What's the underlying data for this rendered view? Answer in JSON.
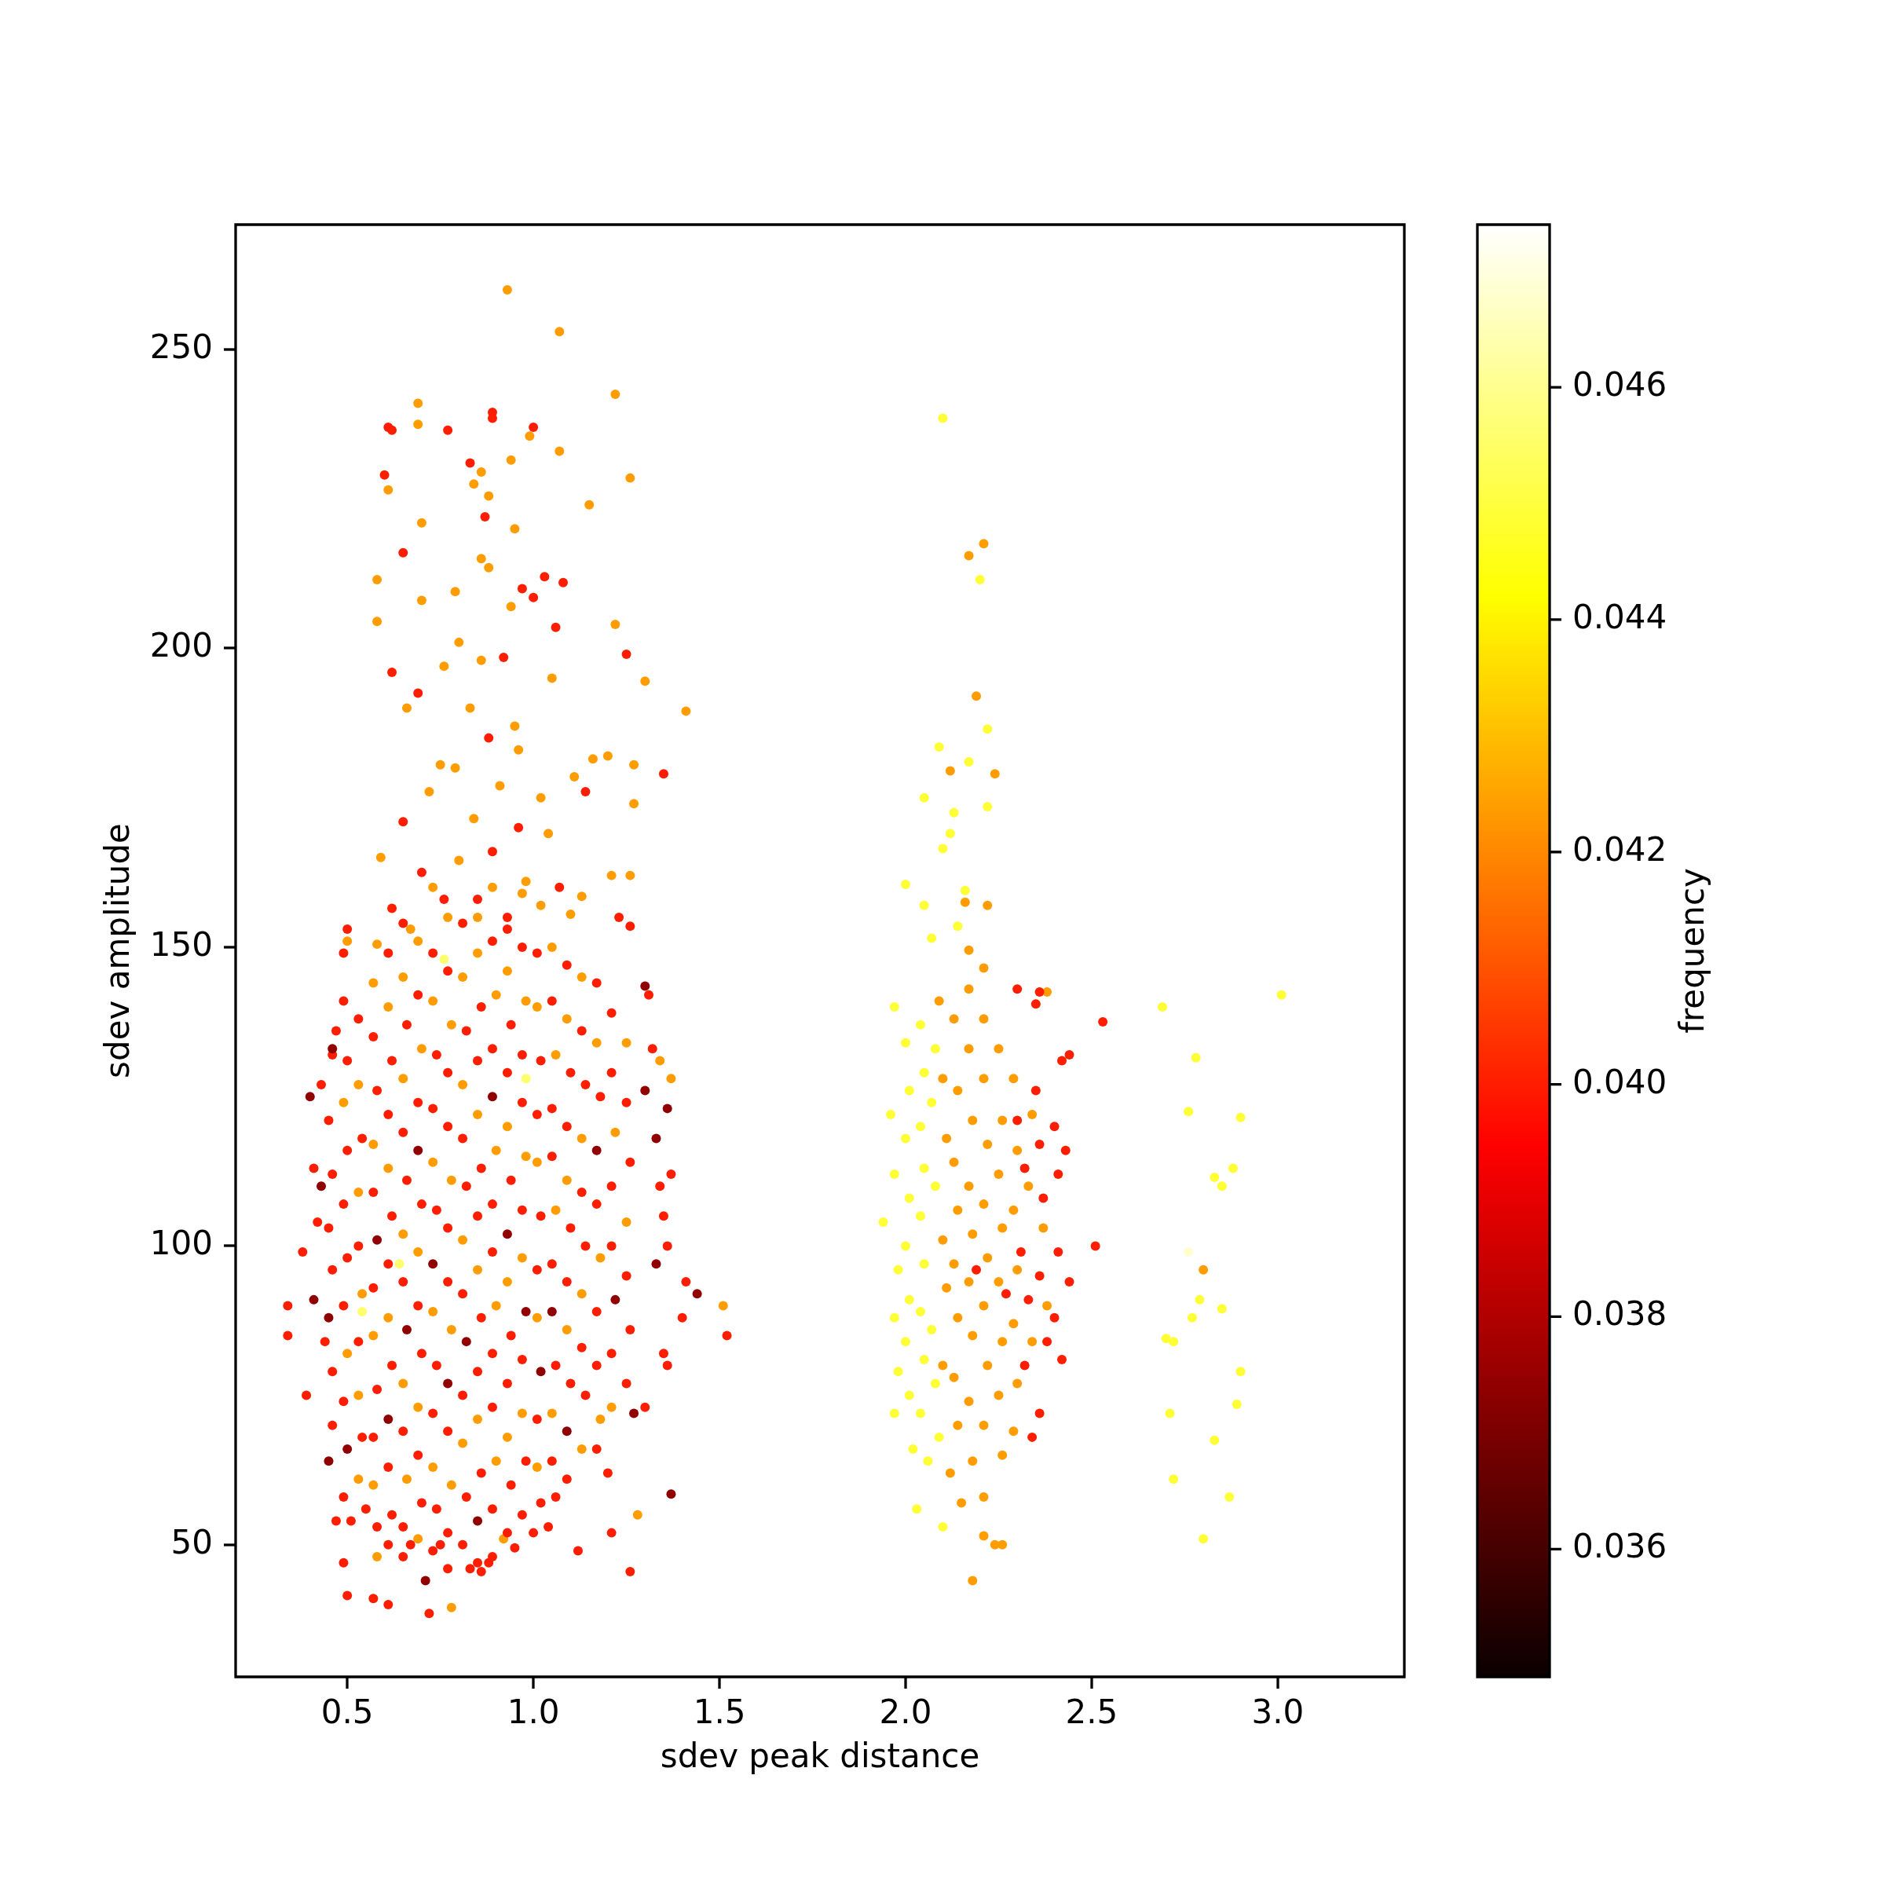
{
  "chart_data": {
    "type": "scatter",
    "xlabel": "sdev peak distance",
    "ylabel": "sdev amplitude",
    "clabel": "frequency",
    "xlim": [
      0.2,
      3.34
    ],
    "ylim": [
      27.9,
      270.9
    ],
    "xticks": [
      0.5,
      {
        "value": 1,
        "label": "1.0"
      },
      1.5,
      {
        "value": 2,
        "label": "2.0"
      },
      2.5,
      {
        "value": 3,
        "label": "3.0"
      }
    ],
    "yticks": [
      50,
      100,
      150,
      200,
      250
    ],
    "clim": [
      0.0349,
      0.0474
    ],
    "cticks": [
      0.036,
      0.038,
      {
        "value": 0.04,
        "label": "0.040"
      },
      0.042,
      0.044,
      0.046
    ],
    "grid": false,
    "legend": false,
    "marker": "circle",
    "series": [
      {
        "x": [
          0.71,
          1.37,
          0.41,
          0.4,
          0.43,
          0.46,
          1.44,
          1.36,
          1.3,
          1.33,
          1.33,
          1.27,
          1.3,
          0.45,
          0.45,
          0.5,
          0.58,
          0.61,
          0.66,
          0.69,
          0.73,
          0.77,
          0.82,
          0.85,
          0.89,
          0.93,
          0.98,
          1.02,
          1.05,
          1.09,
          1.17,
          1.22
        ],
        "values": [
          44,
          58.5,
          91,
          125,
          110,
          133,
          92,
          123,
          143.5,
          118,
          97,
          72,
          126,
          88,
          64,
          66,
          101,
          71,
          86,
          116,
          97,
          77,
          84,
          54,
          125,
          102,
          89,
          79,
          89,
          69,
          116,
          91
        ],
        "cvalues": [
          0.0374,
          0.0374,
          0.0374,
          0.0374,
          0.0374,
          0.0374,
          0.0374,
          0.0374,
          0.0374,
          0.0374,
          0.0374,
          0.0374,
          0.0374,
          0.0374,
          0.0374,
          0.0374,
          0.0374,
          0.0374,
          0.0374,
          0.0374,
          0.0374,
          0.0374,
          0.0374,
          0.0374,
          0.0374,
          0.0374,
          0.0374,
          0.0374,
          0.0374,
          0.0374,
          0.0374,
          0.0374
        ]
      },
      {
        "x": [
          0.61,
          0.62,
          0.77,
          0.89,
          0.89,
          1.0,
          0.83,
          0.6,
          0.87,
          0.65,
          1.03,
          1.08,
          1.0,
          0.97,
          1.06,
          1.25,
          0.62,
          0.69,
          0.92,
          1.35,
          0.88,
          0.65,
          1.14,
          0.7,
          0.89,
          1.07,
          0.76,
          0.62,
          1.23,
          1.26,
          0.5,
          0.93,
          0.96,
          0.72,
          0.5,
          0.57,
          0.61,
          0.49,
          0.86,
          0.88,
          0.83,
          1.26,
          1.12,
          0.75,
          0.67,
          1.0,
          1.04,
          1.21,
          0.95,
          0.47,
          0.51,
          0.55,
          0.34,
          0.34,
          0.39,
          0.38,
          0.41,
          0.42,
          0.43,
          0.44,
          0.47,
          1.52,
          1.41,
          1.4,
          1.36,
          1.31,
          1.32,
          1.35,
          1.36,
          1.34,
          1.37,
          1.35,
          1.3,
          1.2
        ],
        "values": [
          237,
          236.5,
          236.5,
          239.5,
          238.5,
          237,
          231,
          229,
          222,
          216,
          212,
          211,
          208.5,
          210,
          203.5,
          199,
          196,
          192.5,
          198.5,
          179,
          185,
          171,
          176,
          162.5,
          166,
          160,
          158,
          156.5,
          155,
          153.5,
          153,
          153,
          170,
          38.5,
          41.5,
          41,
          40,
          47,
          45.5,
          47,
          46,
          45.5,
          49,
          50,
          50,
          52,
          53,
          52,
          49.5,
          54,
          54,
          56,
          90,
          85,
          75,
          99,
          113,
          104,
          127,
          84,
          136,
          85,
          94,
          88,
          80,
          142,
          133,
          105,
          100,
          110,
          112,
          82,
          73,
          62
        ],
        "cvalues": [
          0.04,
          0.04,
          0.04,
          0.04,
          0.04,
          0.04,
          0.04,
          0.04,
          0.04,
          0.04,
          0.04,
          0.04,
          0.04,
          0.04,
          0.04,
          0.04,
          0.04,
          0.04,
          0.04,
          0.04,
          0.04,
          0.04,
          0.04,
          0.04,
          0.04,
          0.04,
          0.04,
          0.04,
          0.04,
          0.04,
          0.04,
          0.04,
          0.04,
          0.04,
          0.04,
          0.04,
          0.04,
          0.04,
          0.04,
          0.04,
          0.04,
          0.04,
          0.04,
          0.04,
          0.04,
          0.04,
          0.04,
          0.04,
          0.04,
          0.04,
          0.04,
          0.04,
          0.04,
          0.04,
          0.04,
          0.04,
          0.04,
          0.04,
          0.04,
          0.04,
          0.04,
          0.04,
          0.04,
          0.04,
          0.04,
          0.04,
          0.04,
          0.04,
          0.04,
          0.04,
          0.04,
          0.04,
          0.04,
          0.04
        ]
      },
      {
        "x": [
          0.46,
          0.45,
          0.46,
          0.45,
          0.46,
          0.46,
          0.46,
          0.49,
          0.49,
          0.5,
          0.5,
          0.49,
          0.5,
          0.49,
          0.49,
          0.49,
          0.53,
          0.54,
          0.53,
          0.53,
          0.54,
          0.57,
          0.58,
          0.57,
          0.57,
          0.58,
          0.57,
          0.58,
          0.61,
          0.62,
          0.61,
          0.62,
          0.61,
          0.62,
          0.61,
          0.62,
          0.61,
          0.65,
          0.66,
          0.65,
          0.66,
          0.65,
          0.65,
          0.65,
          0.65,
          0.69,
          0.69,
          0.7,
          0.69,
          0.7,
          0.69,
          0.7,
          0.73,
          0.74,
          0.73,
          0.74,
          0.74,
          0.73,
          0.74,
          0.73,
          0.77,
          0.77,
          0.77,
          0.77,
          0.77,
          0.77,
          0.77,
          0.77,
          0.81,
          0.82,
          0.81,
          0.82,
          0.81,
          0.81,
          0.82,
          0.81
        ],
        "values": [
          132,
          121,
          112,
          103,
          96,
          79,
          70,
          149,
          141,
          131,
          116,
          107,
          98,
          90,
          74,
          58,
          138,
          118,
          100,
          84,
          68,
          135,
          126,
          109,
          93,
          76,
          68,
          53,
          149,
          131,
          122,
          105,
          97,
          80,
          63,
          55,
          50,
          154,
          137,
          119,
          111,
          94,
          69,
          53,
          48,
          142,
          124,
          107,
          90,
          82,
          65,
          57,
          149,
          132,
          123,
          106,
          80,
          72,
          56,
          49,
          146,
          129,
          120,
          103,
          94,
          69,
          52,
          46,
          154,
          136,
          118,
          110,
          92,
          75,
          58,
          50
        ],
        "cvalues": [
          0.04,
          0.04,
          0.04,
          0.04,
          0.04,
          0.04,
          0.04,
          0.04,
          0.04,
          0.04,
          0.04,
          0.04,
          0.04,
          0.04,
          0.04,
          0.04,
          0.04,
          0.04,
          0.04,
          0.04,
          0.04,
          0.04,
          0.04,
          0.04,
          0.04,
          0.04,
          0.04,
          0.04,
          0.04,
          0.04,
          0.04,
          0.04,
          0.04,
          0.04,
          0.04,
          0.04,
          0.04,
          0.04,
          0.04,
          0.04,
          0.04,
          0.04,
          0.04,
          0.04,
          0.04,
          0.04,
          0.04,
          0.04,
          0.04,
          0.04,
          0.04,
          0.04,
          0.04,
          0.04,
          0.04,
          0.04,
          0.04,
          0.04,
          0.04,
          0.04,
          0.04,
          0.04,
          0.04,
          0.04,
          0.04,
          0.04,
          0.04,
          0.04,
          0.04,
          0.04,
          0.04,
          0.04,
          0.04,
          0.04,
          0.04,
          0.04
        ]
      },
      {
        "x": [
          0.85,
          0.86,
          0.85,
          0.86,
          0.85,
          0.86,
          0.85,
          0.86,
          0.85,
          0.89,
          0.89,
          0.89,
          0.89,
          0.89,
          0.89,
          0.89,
          0.89,
          0.93,
          0.94,
          0.93,
          0.94,
          0.94,
          0.93,
          0.94,
          0.93,
          0.97,
          0.97,
          0.97,
          0.97,
          0.97,
          0.98,
          0.97,
          1.01,
          1.02,
          1.01,
          1.02,
          1.01,
          1.01,
          1.02,
          1.05,
          1.05,
          1.05,
          1.05,
          1.06,
          1.05,
          1.06,
          1.09,
          1.1,
          1.09,
          1.1,
          1.09,
          1.1,
          1.09,
          1.13,
          1.14,
          1.13,
          1.14,
          1.13,
          1.14,
          1.17,
          1.18,
          1.17,
          1.17,
          1.17,
          1.17,
          1.21,
          1.21,
          1.21,
          1.21,
          1.21,
          1.25,
          1.26,
          1.25,
          1.26,
          1.25
        ],
        "values": [
          158,
          140,
          131,
          113,
          105,
          88,
          79,
          62,
          47,
          151,
          133,
          107,
          99,
          82,
          73,
          56,
          48,
          155,
          137,
          129,
          111,
          85,
          77,
          60,
          52,
          150,
          132,
          124,
          106,
          81,
          64,
          55,
          149,
          131,
          122,
          105,
          96,
          71,
          57,
          141,
          123,
          115,
          97,
          80,
          64,
          58,
          147,
          129,
          120,
          103,
          94,
          77,
          61,
          136,
          127,
          109,
          100,
          83,
          75,
          144,
          125,
          107,
          89,
          80,
          66,
          139,
          129,
          110,
          100,
          82,
          124,
          114,
          95,
          86,
          77
        ],
        "cvalues": [
          0.04,
          0.04,
          0.04,
          0.04,
          0.04,
          0.04,
          0.04,
          0.04,
          0.04,
          0.04,
          0.04,
          0.04,
          0.04,
          0.04,
          0.04,
          0.04,
          0.04,
          0.04,
          0.04,
          0.04,
          0.04,
          0.04,
          0.04,
          0.04,
          0.04,
          0.04,
          0.04,
          0.04,
          0.04,
          0.04,
          0.04,
          0.04,
          0.04,
          0.04,
          0.04,
          0.04,
          0.04,
          0.04,
          0.04,
          0.04,
          0.04,
          0.04,
          0.04,
          0.04,
          0.04,
          0.04,
          0.04,
          0.04,
          0.04,
          0.04,
          0.04,
          0.04,
          0.04,
          0.04,
          0.04,
          0.04,
          0.04,
          0.04,
          0.04,
          0.04,
          0.04,
          0.04,
          0.04,
          0.04,
          0.04,
          0.04,
          0.04,
          0.04,
          0.04,
          0.04,
          0.04,
          0.04,
          0.04,
          0.04,
          0.04
        ]
      },
      {
        "x": [
          2.3,
          2.36,
          2.35,
          2.53,
          2.44,
          2.42,
          2.51,
          2.3,
          2.32,
          2.31,
          2.33,
          2.32,
          2.35,
          2.36,
          2.37,
          2.36,
          2.38,
          2.36,
          2.4,
          2.41,
          2.41,
          2.4,
          2.42,
          2.43,
          2.44,
          2.34,
          2.27,
          2.19
        ],
        "values": [
          143,
          142.5,
          140.5,
          137.5,
          132,
          131,
          100,
          121,
          113,
          99,
          91,
          80,
          126,
          117,
          108,
          95,
          84,
          72,
          120,
          112,
          99,
          88,
          81,
          116,
          94,
          68,
          92,
          96
        ],
        "cvalues": [
          0.04,
          0.04,
          0.04,
          0.04,
          0.04,
          0.04,
          0.04,
          0.04,
          0.04,
          0.04,
          0.04,
          0.04,
          0.04,
          0.04,
          0.04,
          0.04,
          0.04,
          0.04,
          0.04,
          0.04,
          0.04,
          0.04,
          0.04,
          0.04,
          0.04,
          0.04,
          0.04,
          0.04
        ]
      },
      {
        "x": [
          0.93,
          1.07,
          1.22,
          0.69,
          0.69,
          0.99,
          1.07,
          0.94,
          1.26,
          0.86,
          0.84,
          0.61,
          0.88,
          1.15,
          0.95,
          0.7,
          0.88,
          0.86,
          0.58,
          0.7,
          0.79,
          0.94,
          1.22,
          1.3,
          1.41,
          0.83,
          0.58,
          0.95,
          0.8,
          0.86,
          1.05,
          0.76,
          1.16,
          1.2,
          1.27,
          1.27,
          1.11,
          0.75,
          0.79,
          0.66,
          0.96,
          1.02,
          0.72,
          0.84,
          0.91,
          1.04,
          1.21,
          1.26,
          0.59,
          0.8,
          0.98,
          1.13,
          0.67,
          0.5,
          0.58,
          0.85,
          1.02,
          1.1,
          0.73,
          0.78,
          0.92,
          1.28,
          0.58,
          1.51,
          1.37,
          1.34
        ],
        "values": [
          260,
          253,
          242.5,
          241,
          237.5,
          235.5,
          233,
          231.5,
          228.5,
          229.5,
          227.5,
          226.5,
          225.5,
          224,
          220,
          221,
          213.5,
          215,
          211.5,
          208,
          209.5,
          207,
          204,
          194.5,
          189.5,
          190,
          204.5,
          187,
          201,
          198,
          195,
          197,
          181.5,
          182,
          180.5,
          174,
          178.5,
          180.5,
          180,
          190,
          183,
          175,
          176,
          171.5,
          177,
          169,
          162,
          162,
          165,
          164.5,
          161,
          158.5,
          153,
          151,
          150.5,
          155,
          157,
          155.5,
          160,
          39.5,
          51,
          55,
          48,
          90,
          128,
          131
        ],
        "cvalues": [
          0.0424,
          0.0424,
          0.0424,
          0.0424,
          0.0424,
          0.0424,
          0.0424,
          0.0424,
          0.0424,
          0.0424,
          0.0424,
          0.0424,
          0.0424,
          0.0424,
          0.0424,
          0.0424,
          0.0424,
          0.0424,
          0.0424,
          0.0424,
          0.0424,
          0.0424,
          0.0424,
          0.0424,
          0.0424,
          0.0424,
          0.0424,
          0.0424,
          0.0424,
          0.0424,
          0.0424,
          0.0424,
          0.0424,
          0.0424,
          0.0424,
          0.0424,
          0.0424,
          0.0424,
          0.0424,
          0.0424,
          0.0424,
          0.0424,
          0.0424,
          0.0424,
          0.0424,
          0.0424,
          0.0424,
          0.0424,
          0.0424,
          0.0424,
          0.0424,
          0.0424,
          0.0424,
          0.0424,
          0.0424,
          0.0424,
          0.0424,
          0.0424,
          0.0424,
          0.0424,
          0.0424,
          0.0424,
          0.0424,
          0.0424,
          0.0424,
          0.0424
        ]
      },
      {
        "x": [
          0.49,
          0.5,
          0.53,
          0.53,
          0.54,
          0.53,
          0.53,
          0.57,
          0.57,
          0.57,
          0.57,
          0.61,
          0.61,
          0.61,
          0.65,
          0.65,
          0.65,
          0.65,
          0.66,
          0.69,
          0.7,
          0.69,
          0.69,
          0.69,
          0.73,
          0.73,
          0.73,
          0.73,
          0.77,
          0.78,
          0.78,
          0.78,
          0.78,
          0.81,
          0.81,
          0.81,
          0.81,
          0.85,
          0.85,
          0.85,
          0.85,
          0.89,
          0.9,
          0.9,
          0.9,
          0.9,
          0.93,
          0.93,
          0.93,
          0.93,
          0.97,
          0.98,
          0.98,
          0.97,
          0.97,
          1.01,
          1.01,
          1.01,
          1.01,
          1.05,
          1.06,
          1.06,
          1.05,
          1.09,
          1.09,
          1.09,
          1.13,
          1.13,
          1.13,
          1.13,
          1.17,
          1.18,
          1.18,
          1.22,
          1.21,
          1.25,
          1.25
        ],
        "values": [
          124,
          82,
          127,
          109,
          92,
          75,
          61,
          144,
          117,
          85,
          60,
          140,
          113,
          88,
          145,
          128,
          102,
          77,
          61,
          151,
          133,
          99,
          73,
          51,
          141,
          114,
          89,
          63,
          155,
          137,
          111,
          86,
          60,
          145,
          127,
          101,
          67,
          149,
          122,
          96,
          71,
          160,
          142,
          116,
          90,
          64,
          146,
          120,
          94,
          68,
          159,
          141,
          115,
          98,
          72,
          140,
          114,
          88,
          63,
          150,
          132,
          106,
          72,
          138,
          111,
          86,
          145,
          118,
          92,
          66,
          134,
          98,
          71,
          119,
          73,
          134,
          104
        ],
        "cvalues": [
          0.0424,
          0.0424,
          0.0424,
          0.0424,
          0.0424,
          0.0424,
          0.0424,
          0.0424,
          0.0424,
          0.0424,
          0.0424,
          0.0424,
          0.0424,
          0.0424,
          0.0424,
          0.0424,
          0.0424,
          0.0424,
          0.0424,
          0.0424,
          0.0424,
          0.0424,
          0.0424,
          0.0424,
          0.0424,
          0.0424,
          0.0424,
          0.0424,
          0.0424,
          0.0424,
          0.0424,
          0.0424,
          0.0424,
          0.0424,
          0.0424,
          0.0424,
          0.0424,
          0.0424,
          0.0424,
          0.0424,
          0.0424,
          0.0424,
          0.0424,
          0.0424,
          0.0424,
          0.0424,
          0.0424,
          0.0424,
          0.0424,
          0.0424,
          0.0424,
          0.0424,
          0.0424,
          0.0424,
          0.0424,
          0.0424,
          0.0424,
          0.0424,
          0.0424,
          0.0424,
          0.0424,
          0.0424,
          0.0424,
          0.0424,
          0.0424,
          0.0424,
          0.0424,
          0.0424,
          0.0424,
          0.0424,
          0.0424,
          0.0424,
          0.0424,
          0.0424,
          0.0424,
          0.0424,
          0.0424
        ]
      },
      {
        "x": [
          2.17,
          2.21,
          2.19,
          2.12,
          2.24,
          2.16,
          2.22,
          2.17,
          2.21,
          2.38,
          2.09,
          2.1,
          2.11,
          2.1,
          2.11,
          2.1,
          2.12,
          2.13,
          2.14,
          2.13,
          2.14,
          2.13,
          2.14,
          2.13,
          2.14,
          2.15,
          2.17,
          2.17,
          2.18,
          2.17,
          2.18,
          2.17,
          2.18,
          2.17,
          2.18,
          2.18,
          2.21,
          2.21,
          2.22,
          2.21,
          2.22,
          2.21,
          2.22,
          2.21,
          2.21,
          2.21,
          2.24,
          2.26,
          2.25,
          2.26,
          2.25,
          2.26,
          2.25,
          2.26,
          2.25,
          2.26,
          2.29,
          2.3,
          2.29,
          2.3,
          2.29,
          2.3,
          2.29,
          2.34,
          2.33,
          2.34,
          2.38,
          2.37,
          2.8
        ],
        "values": [
          215.5,
          217.5,
          192,
          179.5,
          179,
          157.5,
          157,
          149.5,
          146.5,
          142.5,
          141,
          128,
          118,
          101,
          93,
          80,
          62,
          138,
          126,
          114,
          106,
          97,
          88,
          78,
          70,
          57,
          143,
          133,
          121,
          110,
          102,
          94,
          85,
          74,
          64,
          44,
          138,
          128,
          117,
          107,
          98,
          90,
          80,
          70,
          58,
          51.5,
          50,
          50,
          133,
          121,
          112,
          103,
          94,
          84,
          75,
          65,
          128,
          116,
          106,
          96,
          87,
          77,
          69,
          122,
          110,
          84,
          90,
          103,
          96
        ],
        "cvalues": [
          0.0424,
          0.0424,
          0.0424,
          0.0424,
          0.0424,
          0.0424,
          0.0424,
          0.0424,
          0.0424,
          0.0424,
          0.0424,
          0.0424,
          0.0424,
          0.0424,
          0.0424,
          0.0424,
          0.0424,
          0.0424,
          0.0424,
          0.0424,
          0.0424,
          0.0424,
          0.0424,
          0.0424,
          0.0424,
          0.0424,
          0.0424,
          0.0424,
          0.0424,
          0.0424,
          0.0424,
          0.0424,
          0.0424,
          0.0424,
          0.0424,
          0.0424,
          0.0424,
          0.0424,
          0.0424,
          0.0424,
          0.0424,
          0.0424,
          0.0424,
          0.0424,
          0.0424,
          0.0424,
          0.0424,
          0.0424,
          0.0424,
          0.0424,
          0.0424,
          0.0424,
          0.0424,
          0.0424,
          0.0424,
          0.0424,
          0.0424,
          0.0424,
          0.0424,
          0.0424,
          0.0424,
          0.0424,
          0.0424,
          0.0424,
          0.0424,
          0.0424,
          0.0424,
          0.0424,
          0.0424
        ]
      },
      {
        "x": [
          2.1,
          2.2,
          2.22,
          2.09,
          2.17,
          2.05,
          2.13,
          2.22,
          2.12,
          2.1,
          2.0,
          2.16,
          2.05,
          2.07,
          2.14,
          1.94,
          1.97,
          1.96,
          1.97,
          1.98,
          1.97,
          1.98,
          1.97,
          2.0,
          2.01,
          2.0,
          2.01,
          2.0,
          2.01,
          2.0,
          2.01,
          2.02,
          2.03,
          2.04,
          2.05,
          2.04,
          2.05,
          2.04,
          2.05,
          2.04,
          2.05,
          2.04,
          2.06,
          2.08,
          2.07,
          2.08,
          2.07,
          2.08,
          2.09,
          2.1,
          2.69,
          3.01,
          2.78,
          2.76,
          2.9,
          2.88,
          2.83,
          2.85,
          2.79,
          2.85,
          2.77,
          2.7,
          2.72,
          2.9,
          2.89,
          2.71,
          2.83,
          2.72,
          2.87,
          2.8
        ],
        "values": [
          238.5,
          211.5,
          186.5,
          183.5,
          181,
          175,
          172.5,
          173.5,
          169,
          166.5,
          160.5,
          159.5,
          157,
          151.5,
          153.5,
          104,
          140,
          122,
          112,
          96,
          88,
          79,
          72,
          134,
          126,
          118,
          108,
          100,
          91,
          84,
          75,
          66,
          56,
          137,
          129,
          120,
          113,
          105,
          97,
          89,
          81,
          72,
          64,
          133,
          124,
          110,
          86,
          77,
          68,
          53,
          140,
          142,
          131.5,
          122.5,
          121.5,
          113,
          111.5,
          110,
          91,
          89.5,
          88,
          84.5,
          84,
          79,
          73.5,
          72,
          67.5,
          61,
          58,
          51
        ],
        "cvalues": [
          0.0449,
          0.0449,
          0.0449,
          0.0449,
          0.0449,
          0.0449,
          0.0449,
          0.0449,
          0.0449,
          0.0449,
          0.0449,
          0.0449,
          0.0449,
          0.0449,
          0.0449,
          0.0449,
          0.0449,
          0.0449,
          0.0449,
          0.0449,
          0.0449,
          0.0449,
          0.0449,
          0.0449,
          0.0449,
          0.0449,
          0.0449,
          0.0449,
          0.0449,
          0.0449,
          0.0449,
          0.0449,
          0.0449,
          0.0449,
          0.0449,
          0.0449,
          0.0449,
          0.0449,
          0.0449,
          0.0449,
          0.0449,
          0.0449,
          0.0449,
          0.0449,
          0.0449,
          0.0449,
          0.0449,
          0.0449,
          0.0449,
          0.0449,
          0.0449,
          0.0449,
          0.0449,
          0.0449,
          0.0449,
          0.0449,
          0.0449,
          0.0449,
          0.0449,
          0.0449,
          0.0449,
          0.0449,
          0.0449,
          0.0449,
          0.0449,
          0.0449,
          0.0449,
          0.0449,
          0.0449,
          0.0449
        ]
      },
      {
        "x": [
          0.98,
          0.64,
          0.76,
          0.54
        ],
        "values": [
          128,
          97,
          148,
          89
        ],
        "cvalues": [
          0.0456,
          0.0456,
          0.0456,
          0.0456
        ]
      },
      {
        "x": [
          2.76
        ],
        "values": [
          99
        ],
        "cvalues": [
          0.0468
        ]
      }
    ]
  }
}
